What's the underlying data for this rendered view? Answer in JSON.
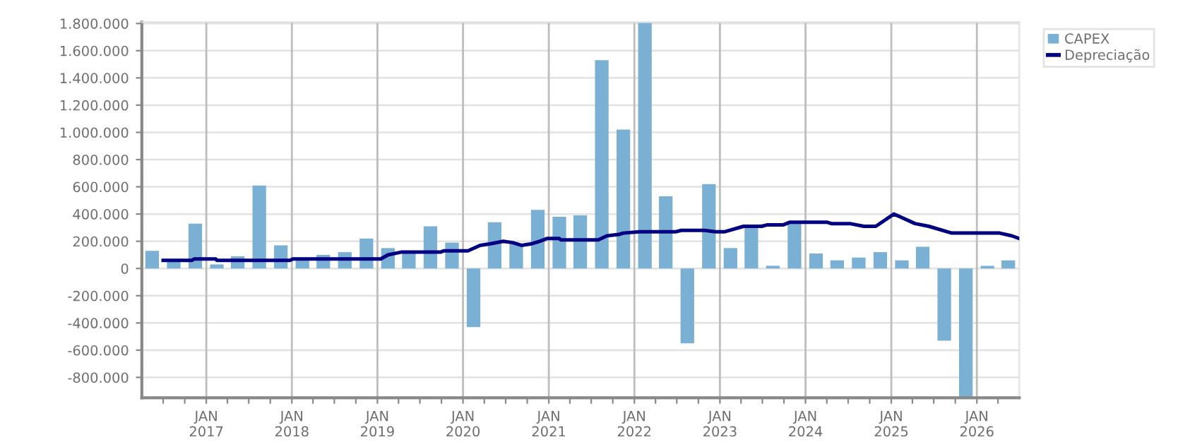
{
  "chart_data": {
    "type": "bar",
    "x": [
      "2016-05-15",
      "2016-08-15",
      "2016-11-15",
      "2017-02-15",
      "2017-05-15",
      "2017-08-15",
      "2017-11-15",
      "2018-02-15",
      "2018-05-15",
      "2018-08-15",
      "2018-11-15",
      "2019-02-15",
      "2019-05-15",
      "2019-08-15",
      "2019-11-15",
      "2020-02-15",
      "2020-05-15",
      "2020-08-15",
      "2020-11-15",
      "2021-02-15",
      "2021-05-15",
      "2021-08-15",
      "2021-11-15",
      "2022-02-15",
      "2022-05-15",
      "2022-08-15",
      "2022-11-15",
      "2023-02-15",
      "2023-05-15",
      "2023-08-15",
      "2023-11-15",
      "2024-02-15",
      "2024-05-15",
      "2024-08-15",
      "2024-11-15",
      "2025-02-15",
      "2025-05-15",
      "2025-08-15",
      "2025-11-15",
      "2026-02-15",
      "2026-05-15"
    ],
    "series": [
      {
        "name": "CAPEX",
        "color": "#7ab0d4",
        "values": [
          130000,
          50000,
          330000,
          30000,
          90000,
          610000,
          170000,
          60000,
          100000,
          120000,
          220000,
          150000,
          120000,
          310000,
          190000,
          -430000,
          340000,
          180000,
          430000,
          380000,
          390000,
          1530000,
          1020000,
          1810000,
          530000,
          -550000,
          620000,
          150000,
          310000,
          20000,
          340000,
          110000,
          60000,
          80000,
          120000,
          60000,
          160000,
          -530000,
          -950000,
          20000,
          60000
        ]
      },
      {
        "name": "Depreciação",
        "type": "line",
        "color": "#000080",
        "x": [
          "2016-07-01",
          "2016-11-01",
          "2016-11-10",
          "2017-02-10",
          "2017-02-15",
          "2017-12-24",
          "2018-01-05",
          "2019-01-15",
          "2019-02-15",
          "2019-04-12",
          "2019-09-27",
          "2019-10-12",
          "2020-01-22",
          "2020-03-14",
          "2020-04-23",
          "2020-06-21",
          "2020-07-31",
          "2020-09-06",
          "2020-10-16",
          "2020-11-24",
          "2020-12-24",
          "2021-02-15",
          "2021-02-21",
          "2021-07-31",
          "2021-09-06",
          "2021-10-27",
          "2021-11-14",
          "2022-01-22",
          "2022-04-20",
          "2022-06-28",
          "2022-07-20",
          "2022-10-27",
          "2022-12-13",
          "2023-01-22",
          "2023-04-12",
          "2023-06-28",
          "2023-07-20",
          "2023-09-27",
          "2023-10-27",
          "2024-04-01",
          "2024-04-20",
          "2024-07-08",
          "2024-09-06",
          "2024-10-27",
          "2025-01-12",
          "2025-04-12",
          "2025-06-10",
          "2025-09-16",
          "2026-04-08",
          "2026-05-30",
          "2026-07-01"
        ],
        "values": [
          60000,
          60000,
          70000,
          70000,
          60000,
          60000,
          70000,
          70000,
          100000,
          120000,
          120000,
          130000,
          130000,
          170000,
          180000,
          200000,
          190000,
          170000,
          180000,
          200000,
          220000,
          220000,
          210000,
          210000,
          240000,
          250000,
          260000,
          270000,
          270000,
          270000,
          280000,
          280000,
          270000,
          270000,
          310000,
          310000,
          320000,
          320000,
          340000,
          340000,
          330000,
          330000,
          310000,
          310000,
          400000,
          330000,
          310000,
          260000,
          260000,
          240000,
          220000
        ]
      }
    ],
    "xlim": [
      "2016-04-01",
      "2026-07-01"
    ],
    "xticks": [
      {
        "value": "2016-07-01",
        "label": null
      },
      {
        "value": "2016-10-01",
        "label": null
      },
      {
        "value": "2017-01-01",
        "label": "JAN\n2017"
      },
      {
        "value": "2017-04-01",
        "label": null
      },
      {
        "value": "2017-07-01",
        "label": null
      },
      {
        "value": "2017-10-01",
        "label": null
      },
      {
        "value": "2018-01-01",
        "label": "JAN\n2018"
      },
      {
        "value": "2018-04-01",
        "label": null
      },
      {
        "value": "2018-07-01",
        "label": null
      },
      {
        "value": "2018-10-01",
        "label": null
      },
      {
        "value": "2019-01-01",
        "label": "JAN\n2019"
      },
      {
        "value": "2019-04-01",
        "label": null
      },
      {
        "value": "2019-07-01",
        "label": null
      },
      {
        "value": "2019-10-01",
        "label": null
      },
      {
        "value": "2020-01-01",
        "label": "JAN\n2020"
      },
      {
        "value": "2020-04-01",
        "label": null
      },
      {
        "value": "2020-07-01",
        "label": null
      },
      {
        "value": "2020-10-01",
        "label": null
      },
      {
        "value": "2021-01-01",
        "label": "JAN\n2021"
      },
      {
        "value": "2021-04-01",
        "label": null
      },
      {
        "value": "2021-07-01",
        "label": null
      },
      {
        "value": "2021-10-01",
        "label": null
      },
      {
        "value": "2022-01-01",
        "label": "JAN\n2022"
      },
      {
        "value": "2022-04-01",
        "label": null
      },
      {
        "value": "2022-07-01",
        "label": null
      },
      {
        "value": "2022-10-01",
        "label": null
      },
      {
        "value": "2023-01-01",
        "label": "JAN\n2023"
      },
      {
        "value": "2023-04-01",
        "label": null
      },
      {
        "value": "2023-07-01",
        "label": null
      },
      {
        "value": "2023-10-01",
        "label": null
      },
      {
        "value": "2024-01-01",
        "label": "JAN\n2024"
      },
      {
        "value": "2024-04-01",
        "label": null
      },
      {
        "value": "2024-07-01",
        "label": null
      },
      {
        "value": "2024-10-01",
        "label": null
      },
      {
        "value": "2025-01-01",
        "label": "JAN\n2025"
      },
      {
        "value": "2025-04-01",
        "label": null
      },
      {
        "value": "2025-07-01",
        "label": null
      },
      {
        "value": "2025-10-01",
        "label": null
      },
      {
        "value": "2026-01-01",
        "label": "JAN\n2026"
      },
      {
        "value": "2026-04-01",
        "label": null
      }
    ],
    "ylim": [
      -950000,
      1810000
    ],
    "yticks": [
      {
        "value": -800000,
        "label": "-800.000"
      },
      {
        "value": -600000,
        "label": "-600.000"
      },
      {
        "value": -400000,
        "label": "-400.000"
      },
      {
        "value": -200000,
        "label": "-200.000"
      },
      0,
      {
        "value": 200000,
        "label": "200.000"
      },
      {
        "value": 400000,
        "label": "400.000"
      },
      {
        "value": 600000,
        "label": "600.000"
      },
      {
        "value": 800000,
        "label": "800.000"
      },
      {
        "value": 1000000,
        "label": "1.000.000"
      },
      {
        "value": 1200000,
        "label": "1.200.000"
      },
      {
        "value": 1400000,
        "label": "1.400.000"
      },
      {
        "value": 1600000,
        "label": "1.600.000"
      },
      {
        "value": 1800000,
        "label": "1.800.000"
      }
    ],
    "grid": true,
    "legend": "top right"
  }
}
